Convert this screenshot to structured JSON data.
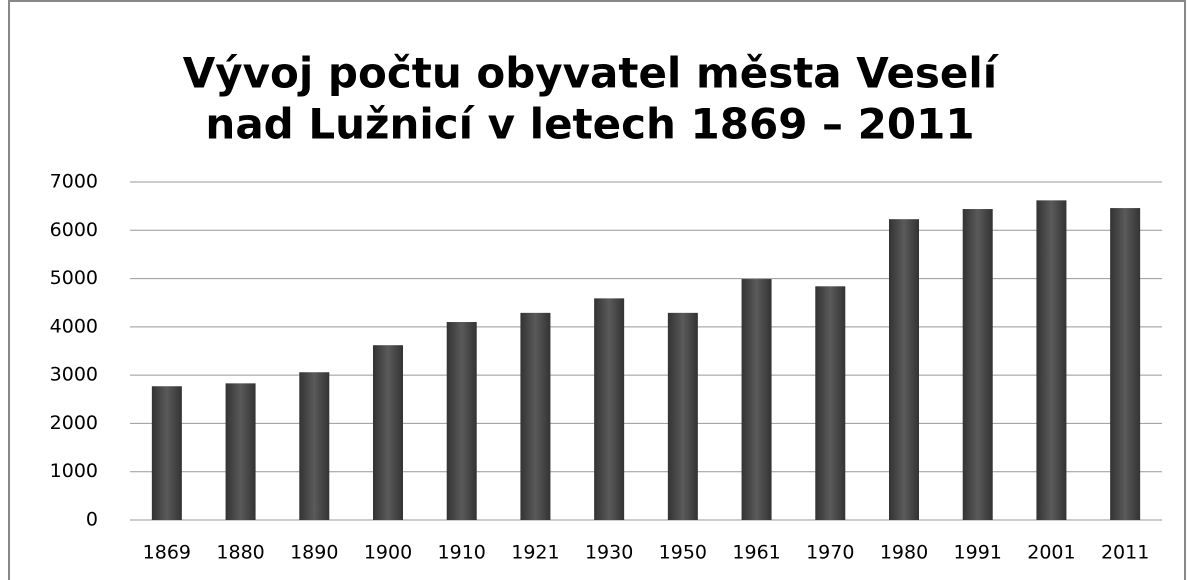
{
  "chart_data": {
    "type": "bar",
    "title": [
      "Vývoj počtu obyvatel města Veselí",
      "nad Lužnicí v letech 1869 – 2011"
    ],
    "categories": [
      "1869",
      "1880",
      "1890",
      "1900",
      "1910",
      "1921",
      "1930",
      "1950",
      "1961",
      "1970",
      "1980",
      "1991",
      "2001",
      "2011"
    ],
    "values": [
      2770,
      2830,
      3060,
      3620,
      4100,
      4290,
      4590,
      4290,
      4990,
      4840,
      6230,
      6440,
      6620,
      6460
    ],
    "color": "#5a5a5a",
    "ylim": [
      0,
      7000
    ],
    "yticks": [
      0,
      1000,
      2000,
      3000,
      4000,
      5000,
      6000,
      7000
    ],
    "grid": true
  }
}
